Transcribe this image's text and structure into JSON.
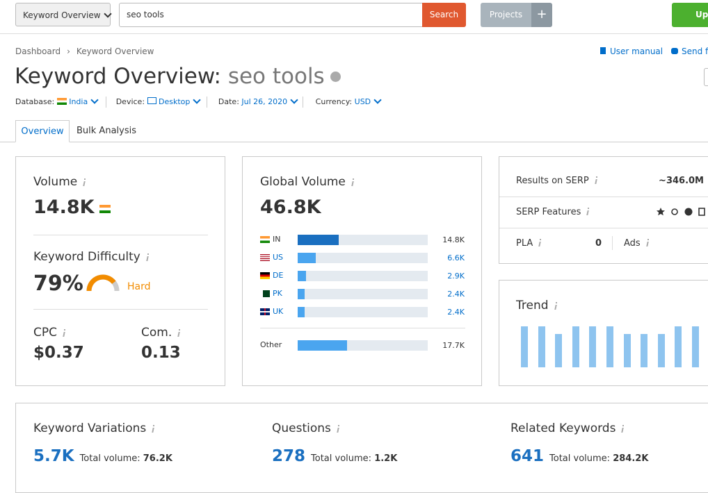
{
  "topbar": {
    "dropdown": "Keyword Overview",
    "search": "seo tools",
    "search_button": "Search",
    "projects": "Projects",
    "upgrade": "Upg"
  },
  "breadcrumb": [
    "Dashboard",
    "Keyword Overview"
  ],
  "links": [
    "User manual",
    "Send fe"
  ],
  "title": "Keyword Overview:",
  "query": "seo tools",
  "filters": [
    {
      "label": "Database:",
      "value": "India"
    },
    {
      "label": "Device:",
      "value": "Desktop"
    },
    {
      "label": "Date:",
      "value": "Jul 26, 2020"
    },
    {
      "label": "Currency:",
      "value": "USD"
    }
  ],
  "tabs": [
    "Overview",
    "Bulk Analysis"
  ],
  "volume": {
    "title": "Volume",
    "value": "14.8K"
  },
  "difficulty": {
    "title": "Keyword Difficulty",
    "value": {
      "value": 79,
      "label": "79%"
    },
    "level": "Hard"
  },
  "cpc": {
    "title": "CPC",
    "value": "$0.37"
  },
  "com": {
    "title": "Com.",
    "value": "0.13"
  },
  "global_volume": {
    "title": "Global Volume",
    "total": {
      "value": 46800,
      "label": "46.8K"
    },
    "countries": [
      {
        "code": "IN",
        "volume": {
          "value": 14800,
          "label": "14.8K"
        }
      },
      {
        "code": "US",
        "volume": {
          "value": 6600,
          "label": "6.6K"
        }
      },
      {
        "code": "DE",
        "volume": {
          "value": 2900,
          "label": "2.9K"
        }
      },
      {
        "code": "PK",
        "volume": {
          "value": 2400,
          "label": "2.4K"
        }
      },
      {
        "code": "UK",
        "volume": {
          "value": 2400,
          "label": "2.4K"
        }
      }
    ],
    "other": {
      "label": "Other",
      "volume": {
        "value": 17700,
        "label": "17.7K"
      }
    }
  },
  "serp": {
    "results_label": "Results on SERP",
    "results": "~346.0M",
    "features_label": "SERP Features",
    "pla_label": "PLA",
    "pla": "0",
    "ads_label": "Ads"
  },
  "trend": {
    "title": "Trend",
    "values": [
      100,
      100,
      81,
      100,
      100,
      100,
      81,
      81,
      81,
      100,
      100
    ]
  },
  "bottom": [
    {
      "title": "Keyword Variations",
      "count": "5.7K",
      "total_label": "Total volume:",
      "total": "76.2K"
    },
    {
      "title": "Questions",
      "count": "278",
      "total_label": "Total volume:",
      "total": "1.2K"
    },
    {
      "title": "Related Keywords",
      "count": "641",
      "total_label": "Total volume:",
      "total": "284.2K"
    }
  ]
}
